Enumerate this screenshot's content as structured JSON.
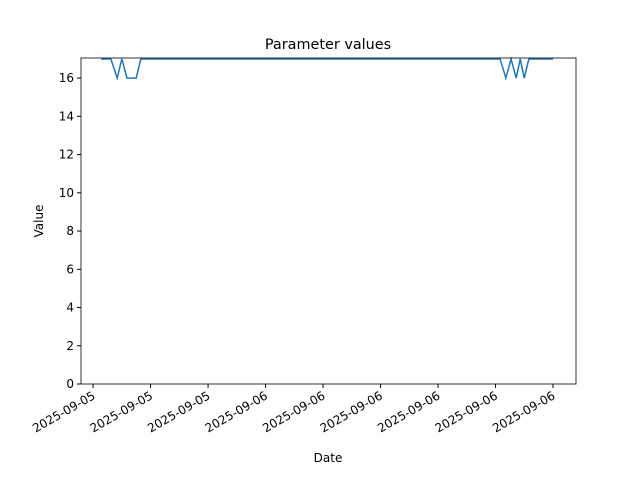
{
  "chart_data": {
    "type": "line",
    "title": "Parameter values",
    "x_label": "Date",
    "y_label": "Value",
    "x": [
      0.14,
      0.31,
      0.42,
      0.5,
      0.59,
      0.75,
      0.83,
      7.08,
      7.18,
      7.27,
      7.36,
      7.43,
      7.5,
      7.58,
      8.0
    ],
    "series": [
      {
        "name": "Value",
        "color": "#1f77b4",
        "values": [
          17,
          17,
          16,
          17,
          16,
          16,
          17,
          17,
          16,
          17,
          16,
          17,
          16,
          17,
          17
        ]
      }
    ],
    "xlim": [
      -0.21,
      8.4
    ],
    "xticks": [
      {
        "value": 0,
        "label": "2025-09-05"
      },
      {
        "value": 1,
        "label": "2025-09-05"
      },
      {
        "value": 2,
        "label": "2025-09-05"
      },
      {
        "value": 3,
        "label": "2025-09-06"
      },
      {
        "value": 4,
        "label": "2025-09-06"
      },
      {
        "value": 5,
        "label": "2025-09-06"
      },
      {
        "value": 6,
        "label": "2025-09-06"
      },
      {
        "value": 7,
        "label": "2025-09-06"
      },
      {
        "value": 8,
        "label": "2025-09-06"
      }
    ],
    "ylim": [
      0,
      17.05
    ],
    "yticks": [
      0,
      2,
      4,
      6,
      8,
      10,
      12,
      14,
      16
    ]
  }
}
